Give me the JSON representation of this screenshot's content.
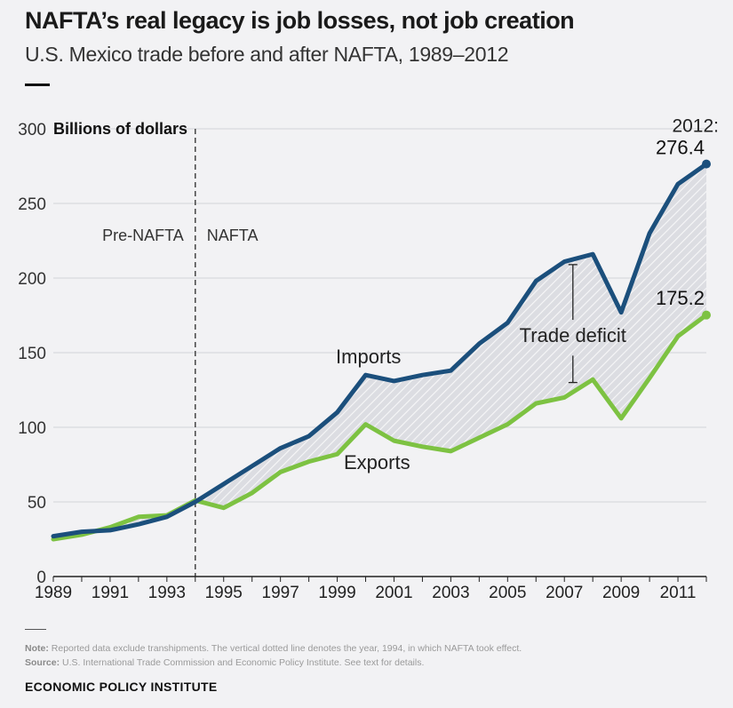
{
  "header": {
    "title": "NAFTA’s real legacy is job losses, not job creation",
    "subtitle": "U.S. Mexico trade before and after NAFTA, 1989–2012"
  },
  "footer": {
    "note_label": "Note:",
    "note_text": "Reported data exclude transhipments. The vertical dotted line denotes the year, 1994, in which NAFTA took effect.",
    "source_label": "Source:",
    "source_text": "U.S. International Trade Commission and Economic Policy Institute. See text for details.",
    "org": "ECONOMIC POLICY INSTITUTE"
  },
  "chart_data": {
    "type": "line",
    "ylabel": "Billions of dollars",
    "ylim": [
      0,
      300
    ],
    "yticks": [
      0,
      50,
      100,
      150,
      200,
      250,
      300
    ],
    "xlim": [
      1989,
      2012
    ],
    "xticks": [
      1989,
      1991,
      1993,
      1995,
      1997,
      1999,
      2001,
      2003,
      2005,
      2007,
      2009,
      2011
    ],
    "x": [
      1989,
      1990,
      1991,
      1992,
      1993,
      1994,
      1995,
      1996,
      1997,
      1998,
      1999,
      2000,
      2001,
      2002,
      2003,
      2004,
      2005,
      2006,
      2007,
      2008,
      2009,
      2010,
      2011,
      2012
    ],
    "series": [
      {
        "name": "Imports",
        "color": "#1b4f7c",
        "values": [
          27,
          30,
          31,
          35,
          40,
          50,
          62,
          74,
          86,
          94,
          110,
          135,
          131,
          135,
          138,
          156,
          170,
          198,
          211,
          216,
          177,
          230,
          263,
          276.4
        ]
      },
      {
        "name": "Exports",
        "color": "#7dc242",
        "values": [
          25,
          28,
          33,
          40,
          41,
          51,
          46,
          56,
          70,
          77,
          82,
          102,
          91,
          87,
          84,
          93,
          102,
          116,
          120,
          132,
          106,
          133,
          161,
          175.2
        ]
      }
    ],
    "fill_label": "Trade deficit",
    "vline": {
      "x": 1994
    },
    "region_labels": {
      "before": "Pre-NAFTA",
      "after": "NAFTA"
    },
    "end_labels": {
      "year": "2012:",
      "imports": "276.4",
      "exports": "175.2"
    },
    "grid": true
  }
}
